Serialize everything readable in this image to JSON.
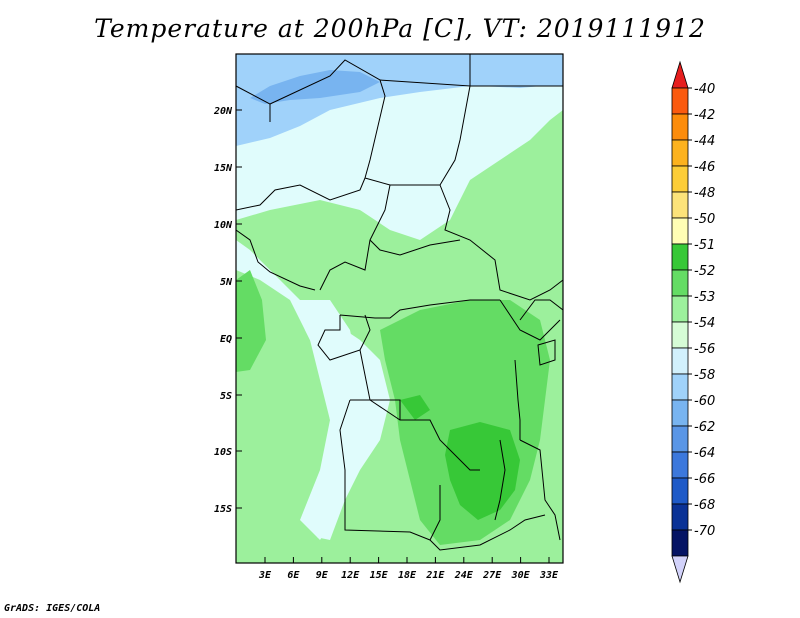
{
  "title": "Temperature at 200hPa [C], VT: 2019111912",
  "footer": "GrADS: IGES/COLA",
  "map": {
    "lat_ticks": [
      "20N",
      "15N",
      "10N",
      "5N",
      "EQ",
      "5S",
      "10S",
      "15S"
    ],
    "lon_ticks": [
      "3E",
      "6E",
      "9E",
      "12E",
      "15E",
      "18E",
      "21E",
      "24E",
      "27E",
      "30E",
      "33E"
    ]
  },
  "colorbar": {
    "labels": [
      "-40",
      "-42",
      "-44",
      "-46",
      "-48",
      "-50",
      "-51",
      "-52",
      "-53",
      "-54",
      "-56",
      "-58",
      "-60",
      "-62",
      "-64",
      "-66",
      "-68",
      "-70"
    ],
    "colors": [
      "#f03228",
      "#fa5a0f",
      "#fc8c0b",
      "#fcb21e",
      "#fccd38",
      "#fce37a",
      "#fffeb5",
      "#37c837",
      "#64dc64",
      "#9cf09c",
      "#d6fcd6",
      "#d2f0fc",
      "#a0d2fa",
      "#78b4f0",
      "#5a96e6",
      "#3c78dc",
      "#1e5ac8",
      "#0a3296",
      "#051464"
    ],
    "top_arrow_color": "#e61e1e",
    "bottom_arrow_color": "#d2d2fa"
  },
  "field_colors": {
    "minus52": "#37c837",
    "minus53": "#64dc64",
    "minus54": "#9cf09c",
    "minus56": "#d6fcd6",
    "cyan_light": "#e0fcfc",
    "minus58": "#a0d2fa",
    "minus60": "#78b4f0"
  }
}
